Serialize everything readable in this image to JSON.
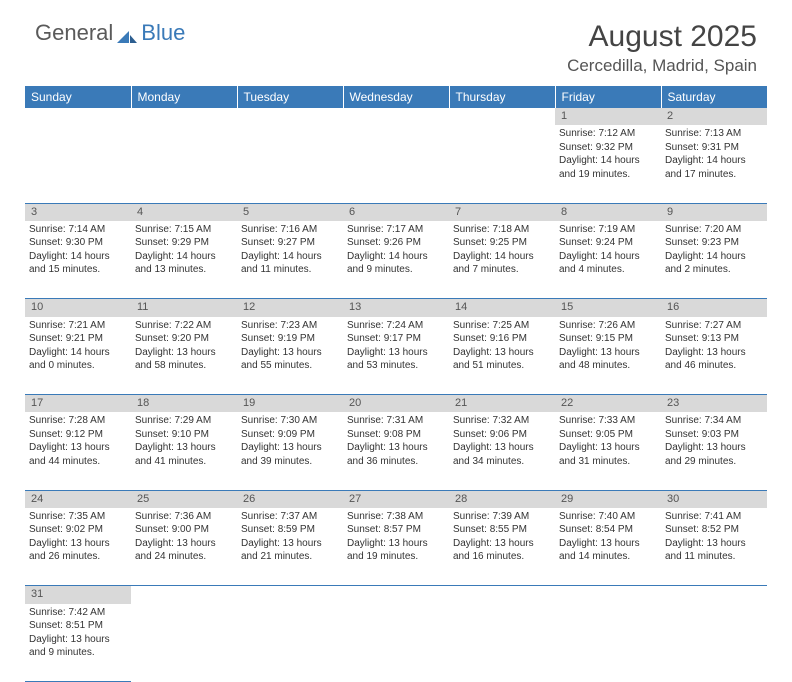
{
  "logo": {
    "part1": "General",
    "part2": "Blue"
  },
  "title": "August 2025",
  "location": "Cercedilla, Madrid, Spain",
  "colors": {
    "header_bg": "#3a7ab8",
    "header_text": "#ffffff",
    "daynum_bg": "#d9d9d9",
    "cell_border": "#3a7ab8",
    "text": "#333333",
    "logo_gray": "#5a5a5a",
    "logo_blue": "#3a7ab8"
  },
  "weekdays": [
    "Sunday",
    "Monday",
    "Tuesday",
    "Wednesday",
    "Thursday",
    "Friday",
    "Saturday"
  ],
  "weeks": [
    [
      null,
      null,
      null,
      null,
      null,
      {
        "d": "1",
        "sr": "7:12 AM",
        "ss": "9:32 PM",
        "dl": "14 hours and 19 minutes."
      },
      {
        "d": "2",
        "sr": "7:13 AM",
        "ss": "9:31 PM",
        "dl": "14 hours and 17 minutes."
      }
    ],
    [
      {
        "d": "3",
        "sr": "7:14 AM",
        "ss": "9:30 PM",
        "dl": "14 hours and 15 minutes."
      },
      {
        "d": "4",
        "sr": "7:15 AM",
        "ss": "9:29 PM",
        "dl": "14 hours and 13 minutes."
      },
      {
        "d": "5",
        "sr": "7:16 AM",
        "ss": "9:27 PM",
        "dl": "14 hours and 11 minutes."
      },
      {
        "d": "6",
        "sr": "7:17 AM",
        "ss": "9:26 PM",
        "dl": "14 hours and 9 minutes."
      },
      {
        "d": "7",
        "sr": "7:18 AM",
        "ss": "9:25 PM",
        "dl": "14 hours and 7 minutes."
      },
      {
        "d": "8",
        "sr": "7:19 AM",
        "ss": "9:24 PM",
        "dl": "14 hours and 4 minutes."
      },
      {
        "d": "9",
        "sr": "7:20 AM",
        "ss": "9:23 PM",
        "dl": "14 hours and 2 minutes."
      }
    ],
    [
      {
        "d": "10",
        "sr": "7:21 AM",
        "ss": "9:21 PM",
        "dl": "14 hours and 0 minutes."
      },
      {
        "d": "11",
        "sr": "7:22 AM",
        "ss": "9:20 PM",
        "dl": "13 hours and 58 minutes."
      },
      {
        "d": "12",
        "sr": "7:23 AM",
        "ss": "9:19 PM",
        "dl": "13 hours and 55 minutes."
      },
      {
        "d": "13",
        "sr": "7:24 AM",
        "ss": "9:17 PM",
        "dl": "13 hours and 53 minutes."
      },
      {
        "d": "14",
        "sr": "7:25 AM",
        "ss": "9:16 PM",
        "dl": "13 hours and 51 minutes."
      },
      {
        "d": "15",
        "sr": "7:26 AM",
        "ss": "9:15 PM",
        "dl": "13 hours and 48 minutes."
      },
      {
        "d": "16",
        "sr": "7:27 AM",
        "ss": "9:13 PM",
        "dl": "13 hours and 46 minutes."
      }
    ],
    [
      {
        "d": "17",
        "sr": "7:28 AM",
        "ss": "9:12 PM",
        "dl": "13 hours and 44 minutes."
      },
      {
        "d": "18",
        "sr": "7:29 AM",
        "ss": "9:10 PM",
        "dl": "13 hours and 41 minutes."
      },
      {
        "d": "19",
        "sr": "7:30 AM",
        "ss": "9:09 PM",
        "dl": "13 hours and 39 minutes."
      },
      {
        "d": "20",
        "sr": "7:31 AM",
        "ss": "9:08 PM",
        "dl": "13 hours and 36 minutes."
      },
      {
        "d": "21",
        "sr": "7:32 AM",
        "ss": "9:06 PM",
        "dl": "13 hours and 34 minutes."
      },
      {
        "d": "22",
        "sr": "7:33 AM",
        "ss": "9:05 PM",
        "dl": "13 hours and 31 minutes."
      },
      {
        "d": "23",
        "sr": "7:34 AM",
        "ss": "9:03 PM",
        "dl": "13 hours and 29 minutes."
      }
    ],
    [
      {
        "d": "24",
        "sr": "7:35 AM",
        "ss": "9:02 PM",
        "dl": "13 hours and 26 minutes."
      },
      {
        "d": "25",
        "sr": "7:36 AM",
        "ss": "9:00 PM",
        "dl": "13 hours and 24 minutes."
      },
      {
        "d": "26",
        "sr": "7:37 AM",
        "ss": "8:59 PM",
        "dl": "13 hours and 21 minutes."
      },
      {
        "d": "27",
        "sr": "7:38 AM",
        "ss": "8:57 PM",
        "dl": "13 hours and 19 minutes."
      },
      {
        "d": "28",
        "sr": "7:39 AM",
        "ss": "8:55 PM",
        "dl": "13 hours and 16 minutes."
      },
      {
        "d": "29",
        "sr": "7:40 AM",
        "ss": "8:54 PM",
        "dl": "13 hours and 14 minutes."
      },
      {
        "d": "30",
        "sr": "7:41 AM",
        "ss": "8:52 PM",
        "dl": "13 hours and 11 minutes."
      }
    ],
    [
      {
        "d": "31",
        "sr": "7:42 AM",
        "ss": "8:51 PM",
        "dl": "13 hours and 9 minutes."
      },
      null,
      null,
      null,
      null,
      null,
      null
    ]
  ],
  "labels": {
    "sunrise": "Sunrise:",
    "sunset": "Sunset:",
    "daylight": "Daylight:"
  }
}
